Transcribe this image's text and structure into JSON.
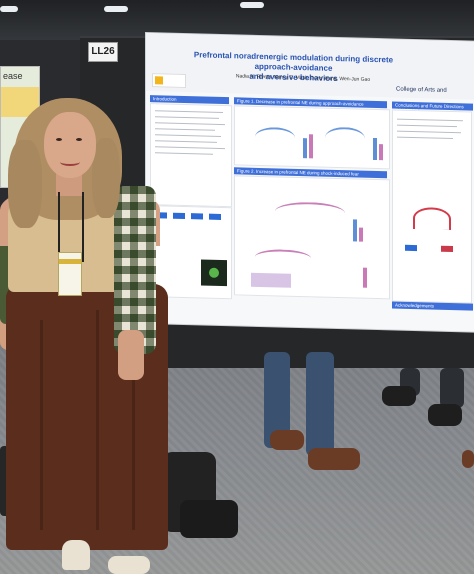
{
  "booth_tag": "LL26",
  "left_poster_text": "ease",
  "poster": {
    "title_line1": "Prefrontal noradrenergic modulation during discrete approach-avoidance",
    "title_line2": "and aversive behaviors",
    "authors": "Nadia N. Rivera, Nancy E. Mack, Dong Wang, Wen-Jun Gao",
    "logo_right": "College of Arts and Sciences",
    "sections": {
      "introduction": "Introduction",
      "figure1": "Figure 1. Decrease in prefrontal NE during approach-avoidance",
      "figure2": "Figure 2. Increase in prefrontal NE during shock-induced fear",
      "conclusions": "Conclusions and Future Directions",
      "acknowledgements": "Acknowledgements"
    }
  },
  "colors": {
    "poster_title": "#2a54b3",
    "section_header": "#3f6fd8",
    "pants": "#5b2d1c",
    "top": "#d7bd8f"
  }
}
